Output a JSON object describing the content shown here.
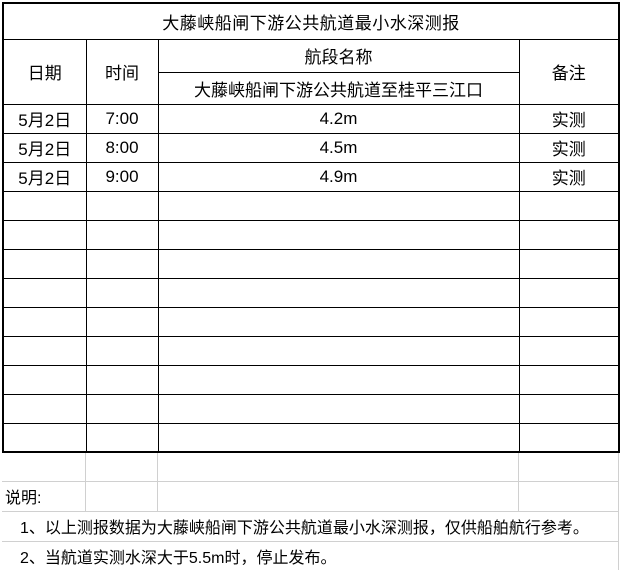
{
  "title": "大藤峡船闸下游公共航道最小水深测报",
  "table": {
    "headers": {
      "date": "日期",
      "time": "时间",
      "segment": "航段名称",
      "segment_sub": "大藤峡船闸下游公共航道至桂平三江口",
      "remark": "备注"
    },
    "rows": [
      {
        "date": "5月2日",
        "time": "7:00",
        "depth": "4.2m",
        "remark": "实测"
      },
      {
        "date": "5月2日",
        "time": "8:00",
        "depth": "4.5m",
        "remark": "实测"
      },
      {
        "date": "5月2日",
        "time": "9:00",
        "depth": "4.9m",
        "remark": "实测"
      },
      {
        "date": "",
        "time": "",
        "depth": "",
        "remark": ""
      },
      {
        "date": "",
        "time": "",
        "depth": "",
        "remark": ""
      },
      {
        "date": "",
        "time": "",
        "depth": "",
        "remark": ""
      },
      {
        "date": "",
        "time": "",
        "depth": "",
        "remark": ""
      },
      {
        "date": "",
        "time": "",
        "depth": "",
        "remark": ""
      },
      {
        "date": "",
        "time": "",
        "depth": "",
        "remark": ""
      },
      {
        "date": "",
        "time": "",
        "depth": "",
        "remark": ""
      },
      {
        "date": "",
        "time": "",
        "depth": "",
        "remark": ""
      },
      {
        "date": "",
        "time": "",
        "depth": "",
        "remark": ""
      }
    ]
  },
  "footer": {
    "label": "说明:",
    "notes": [
      "1、以上测报数据为大藤峡船闸下游公共航道最小水深测报，仅供船舶航行参考。",
      "2、当航道实测水深大于5.5m时，停止发布。"
    ]
  },
  "colors": {
    "table_border": "#000000",
    "gridline": "#d0d0d0",
    "background": "#ffffff",
    "text": "#000000"
  }
}
